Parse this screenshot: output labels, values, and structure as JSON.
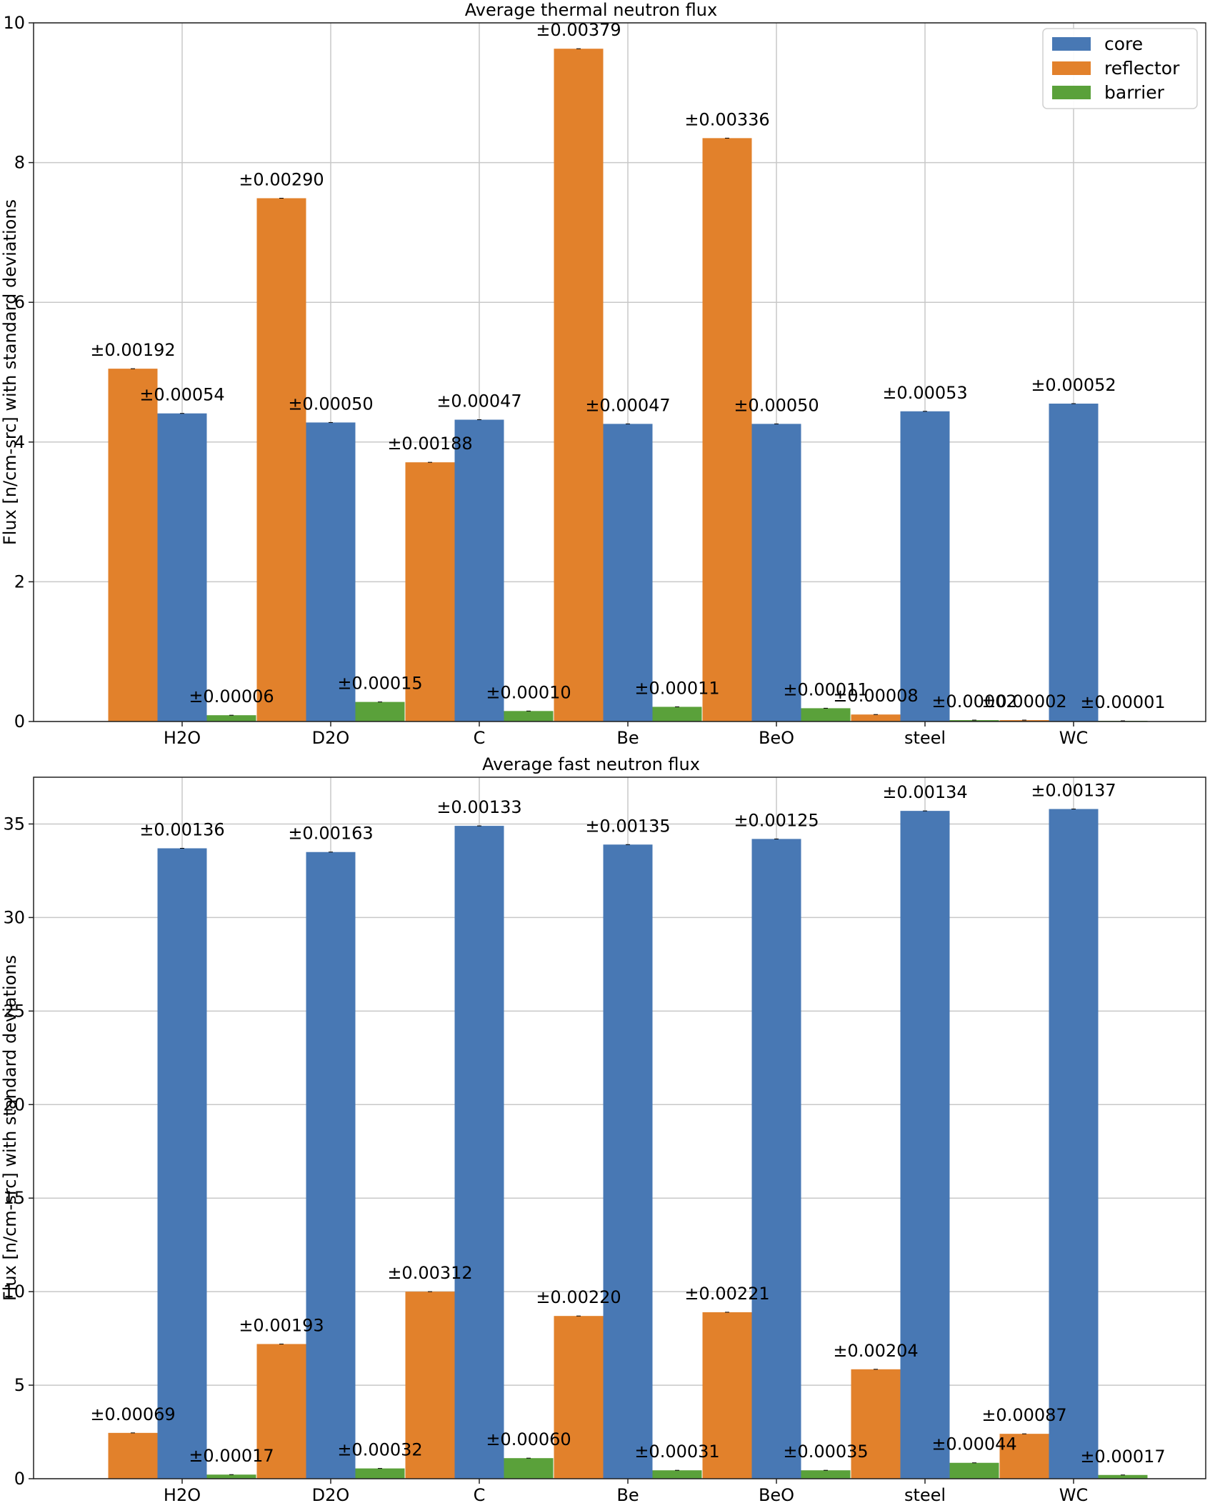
{
  "colors": {
    "core": "#4878b4",
    "reflector": "#e2812b",
    "barrier": "#5aa13a",
    "grid": "#c8c8c8",
    "frame": "#222222"
  },
  "chart_data": [
    {
      "type": "bar",
      "title": "Average thermal neutron flux",
      "ylabel": "Flux [n/cm-src] with standard deviations",
      "categories": [
        "H2O",
        "D2O",
        "C",
        "Be",
        "BeO",
        "steel",
        "WC"
      ],
      "ylim": [
        0,
        10
      ],
      "yticks": [
        0,
        2,
        4,
        6,
        8,
        10
      ],
      "grid": true,
      "legend_placement": "top-right",
      "series": [
        {
          "name": "reflector",
          "values": [
            5.05,
            7.49,
            3.71,
            9.63,
            8.35,
            0.1,
            0.02
          ],
          "errors": [
            "±0.00192",
            "±0.00290",
            "±0.00188",
            "±0.00379",
            "±0.00336",
            "±0.00008",
            "±0.00002"
          ]
        },
        {
          "name": "core",
          "values": [
            4.41,
            4.28,
            4.32,
            4.26,
            4.26,
            4.44,
            4.55
          ],
          "errors": [
            "±0.00054",
            "±0.00050",
            "±0.00047",
            "±0.00047",
            "±0.00050",
            "±0.00053",
            "±0.00052"
          ]
        },
        {
          "name": "barrier",
          "values": [
            0.09,
            0.28,
            0.15,
            0.21,
            0.19,
            0.02,
            0.01
          ],
          "errors": [
            "±0.00006",
            "±0.00015",
            "±0.00010",
            "±0.00011",
            "±0.00011",
            "±0.00002",
            "±0.00001"
          ]
        }
      ]
    },
    {
      "type": "bar",
      "title": "Average fast neutron flux",
      "ylabel": "Flux [n/cm-src] with standard deviations",
      "categories": [
        "H2O",
        "D2O",
        "C",
        "Be",
        "BeO",
        "steel",
        "WC"
      ],
      "ylim": [
        0,
        37.5
      ],
      "yticks": [
        0,
        5,
        10,
        15,
        20,
        25,
        30,
        35
      ],
      "grid": true,
      "series": [
        {
          "name": "reflector",
          "values": [
            2.45,
            7.2,
            10.0,
            8.7,
            8.9,
            5.85,
            2.4
          ],
          "errors": [
            "±0.00069",
            "±0.00193",
            "±0.00312",
            "±0.00220",
            "±0.00221",
            "±0.00204",
            "±0.00087"
          ]
        },
        {
          "name": "core",
          "values": [
            33.7,
            33.5,
            34.9,
            33.9,
            34.2,
            35.7,
            35.8
          ],
          "errors": [
            "±0.00136",
            "±0.00163",
            "±0.00133",
            "±0.00135",
            "±0.00125",
            "±0.00134",
            "±0.00137"
          ]
        },
        {
          "name": "barrier",
          "values": [
            0.22,
            0.55,
            1.1,
            0.45,
            0.45,
            0.85,
            0.2
          ],
          "errors": [
            "±0.00017",
            "±0.00032",
            "±0.00060",
            "±0.00031",
            "±0.00035",
            "±0.00044",
            "±0.00017"
          ]
        }
      ]
    }
  ]
}
